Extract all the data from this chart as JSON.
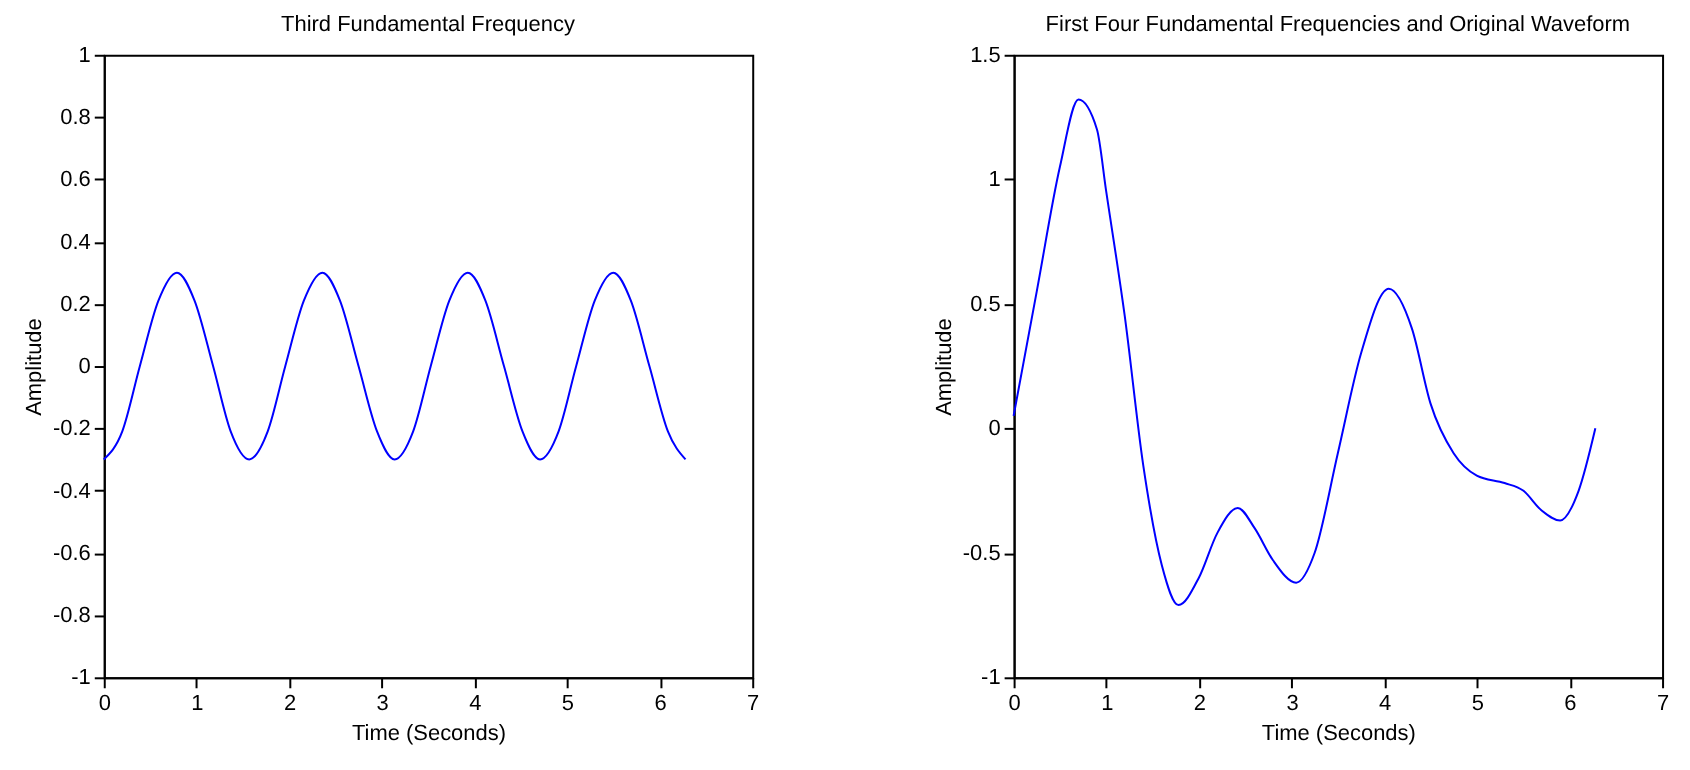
{
  "chart_data": [
    {
      "type": "line",
      "title": "Third Fundamental Frequency",
      "xlabel": "Time (Seconds)",
      "ylabel": "Amplitude",
      "grid": false,
      "marker": "none",
      "line_style": "solid",
      "xlim": [
        0,
        7
      ],
      "ylim": [
        -1,
        1
      ],
      "xticks": [
        0,
        1,
        2,
        3,
        4,
        5,
        6,
        7
      ],
      "yticks": [
        -1,
        -0.8,
        -0.6,
        -0.4,
        -0.2,
        0,
        0.2,
        0.4,
        0.6,
        0.8,
        1
      ],
      "x": [
        0,
        0.2,
        0.39,
        0.59,
        0.79,
        0.98,
        1.18,
        1.37,
        1.57,
        1.77,
        1.96,
        2.16,
        2.36,
        2.55,
        2.75,
        2.95,
        3.14,
        3.34,
        3.53,
        3.73,
        3.93,
        4.12,
        4.32,
        4.52,
        4.71,
        4.91,
        5.1,
        5.3,
        5.5,
        5.69,
        5.89,
        6.09,
        6.28
      ],
      "series": [
        {
          "color": "#0000ff",
          "values": [
            -0.3,
            -0.21,
            0,
            0.21,
            0.3,
            0.21,
            0,
            -0.21,
            -0.3,
            -0.21,
            0,
            0.21,
            0.3,
            0.21,
            0,
            -0.21,
            -0.3,
            -0.21,
            0,
            0.21,
            0.3,
            0.21,
            0,
            -0.21,
            -0.3,
            -0.21,
            0,
            0.21,
            0.3,
            0.21,
            0,
            -0.21,
            -0.3
          ]
        }
      ]
    },
    {
      "type": "line",
      "title": "First Four Fundamental Frequencies and Original Waveform",
      "xlabel": "Time (Seconds)",
      "ylabel": "Amplitude",
      "grid": false,
      "marker": "none",
      "line_style": "solid",
      "xlim": [
        0,
        7
      ],
      "ylim": [
        -1,
        1.5
      ],
      "xticks": [
        0,
        1,
        2,
        3,
        4,
        5,
        6,
        7
      ],
      "yticks": [
        -1,
        -0.5,
        0,
        0.5,
        1,
        1.5
      ],
      "x": [
        0,
        0.25,
        0.5,
        0.7,
        0.9,
        1.0,
        1.2,
        1.4,
        1.6,
        1.78,
        2.0,
        2.2,
        2.42,
        2.6,
        2.8,
        3.05,
        3.25,
        3.5,
        3.75,
        4.05,
        4.3,
        4.5,
        4.75,
        5.0,
        5.3,
        5.5,
        5.7,
        5.9,
        6.1,
        6.28
      ],
      "series": [
        {
          "color": "#0000ff",
          "values": [
            0.05,
            0.55,
            1.05,
            1.32,
            1.2,
            0.95,
            0.45,
            -0.15,
            -0.55,
            -0.71,
            -0.6,
            -0.42,
            -0.32,
            -0.4,
            -0.53,
            -0.62,
            -0.5,
            -0.1,
            0.3,
            0.56,
            0.4,
            0.1,
            -0.1,
            -0.19,
            -0.22,
            -0.25,
            -0.33,
            -0.37,
            -0.25,
            0.0
          ]
        }
      ]
    }
  ]
}
